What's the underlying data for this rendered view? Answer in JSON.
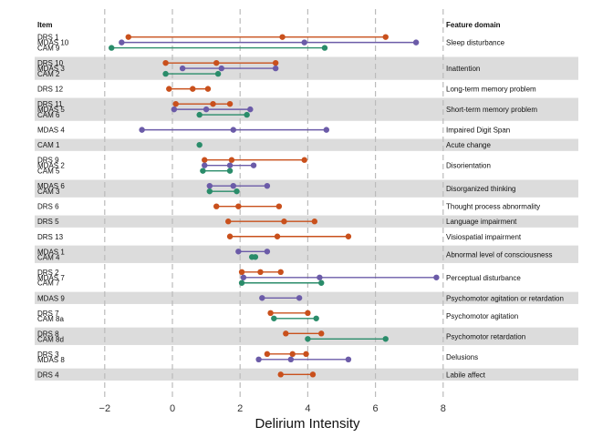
{
  "chart_data": {
    "type": "dumbbell",
    "xlabel": "Delirium Intensity",
    "xlim": [
      -2.7,
      8
    ],
    "xticks": [
      -2,
      0,
      2,
      4,
      6,
      8
    ],
    "grid": "vertical dashed",
    "headers": {
      "item": "Item",
      "domain": "Feature domain"
    },
    "colors": {
      "DRS": "#c9501c",
      "MDAS": "#6b5ba8",
      "CAM": "#2a8c6a",
      "band": "#dcdcdc",
      "grid": "#bbbbbb"
    },
    "domains": [
      {
        "name": "Sleep disturbance",
        "shaded": false,
        "items": [
          {
            "label": "DRS 1",
            "group": "DRS",
            "points": [
              -1.3,
              3.25,
              6.3
            ]
          },
          {
            "label": "MDAS 10",
            "group": "MDAS",
            "points": [
              -1.5,
              3.9,
              7.2
            ]
          },
          {
            "label": "CAM 9",
            "group": "CAM",
            "points": [
              -1.8,
              4.5
            ]
          }
        ]
      },
      {
        "name": "Inattention",
        "shaded": true,
        "items": [
          {
            "label": "DRS 10",
            "group": "DRS",
            "points": [
              -0.2,
              1.3,
              3.05
            ]
          },
          {
            "label": "MDAS 3",
            "group": "MDAS",
            "points": [
              0.3,
              1.45,
              3.05
            ]
          },
          {
            "label": "CAM 2",
            "group": "CAM",
            "points": [
              -0.2,
              1.35
            ]
          }
        ]
      },
      {
        "name": "Long-term memory problem",
        "shaded": false,
        "items": [
          {
            "label": "DRS 12",
            "group": "DRS",
            "points": [
              -0.1,
              0.6,
              1.05
            ]
          }
        ]
      },
      {
        "name": "Short-term memory problem",
        "shaded": true,
        "items": [
          {
            "label": "DRS 11",
            "group": "DRS",
            "points": [
              0.1,
              1.2,
              1.7
            ]
          },
          {
            "label": "MDAS 5",
            "group": "MDAS",
            "points": [
              0.05,
              1.0,
              2.3
            ]
          },
          {
            "label": "CAM 6",
            "group": "CAM",
            "points": [
              0.8,
              2.2
            ]
          }
        ]
      },
      {
        "name": "Impaired Digit Span",
        "shaded": false,
        "items": [
          {
            "label": "MDAS 4",
            "group": "MDAS",
            "points": [
              -0.9,
              1.8,
              4.55
            ]
          }
        ]
      },
      {
        "name": "Acute change",
        "shaded": true,
        "items": [
          {
            "label": "CAM 1",
            "group": "CAM",
            "points": [
              0.8
            ]
          }
        ]
      },
      {
        "name": "Disorientation",
        "shaded": false,
        "items": [
          {
            "label": "DRS 9",
            "group": "DRS",
            "points": [
              0.95,
              1.75,
              3.9
            ]
          },
          {
            "label": "MDAS 2",
            "group": "MDAS",
            "points": [
              0.95,
              1.7,
              2.4
            ]
          },
          {
            "label": "CAM 5",
            "group": "CAM",
            "points": [
              0.9,
              1.7
            ]
          }
        ]
      },
      {
        "name": "Disorganized thinking",
        "shaded": true,
        "items": [
          {
            "label": "MDAS 6",
            "group": "MDAS",
            "points": [
              1.1,
              1.8,
              2.8
            ]
          },
          {
            "label": "CAM 3",
            "group": "CAM",
            "points": [
              1.1,
              1.9
            ]
          }
        ]
      },
      {
        "name": "Thought process abnormality",
        "shaded": false,
        "items": [
          {
            "label": "DRS 6",
            "group": "DRS",
            "points": [
              1.3,
              1.95,
              3.15
            ]
          }
        ]
      },
      {
        "name": "Language impairment",
        "shaded": true,
        "items": [
          {
            "label": "DRS 5",
            "group": "DRS",
            "points": [
              1.65,
              3.3,
              4.2
            ]
          }
        ]
      },
      {
        "name": "Visiospatial impairment",
        "shaded": false,
        "items": [
          {
            "label": "DRS 13",
            "group": "DRS",
            "points": [
              1.7,
              3.1,
              5.2
            ]
          }
        ]
      },
      {
        "name": "Abnormal level of consciousness",
        "shaded": true,
        "items": [
          {
            "label": "MDAS 1",
            "group": "MDAS",
            "points": [
              1.95,
              2.8
            ]
          },
          {
            "label": "CAM 4",
            "group": "CAM",
            "points": [
              2.35,
              2.45
            ]
          }
        ]
      },
      {
        "name": "Perceptual disturbance",
        "shaded": false,
        "items": [
          {
            "label": "DRS 2",
            "group": "DRS",
            "points": [
              2.05,
              2.6,
              3.2
            ]
          },
          {
            "label": "MDAS 7",
            "group": "MDAS",
            "points": [
              2.1,
              4.35,
              7.8
            ]
          },
          {
            "label": "CAM 7",
            "group": "CAM",
            "points": [
              2.05,
              4.4
            ]
          }
        ]
      },
      {
        "name": "Psychomotor agitation or retardation",
        "shaded": true,
        "items": [
          {
            "label": "MDAS 9",
            "group": "MDAS",
            "points": [
              2.65,
              3.75
            ]
          }
        ]
      },
      {
        "name": "Psychomotor agitation",
        "shaded": false,
        "items": [
          {
            "label": "DRS 7",
            "group": "DRS",
            "points": [
              2.9,
              4.0
            ]
          },
          {
            "label": "CAM 8a",
            "group": "CAM",
            "points": [
              3.0,
              4.25
            ]
          }
        ]
      },
      {
        "name": "Psychomotor retardation",
        "shaded": true,
        "items": [
          {
            "label": "DRS 8",
            "group": "DRS",
            "points": [
              3.35,
              4.4
            ]
          },
          {
            "label": "CAM 8d",
            "group": "CAM",
            "points": [
              4.0,
              6.3
            ]
          }
        ]
      },
      {
        "name": "Delusions",
        "shaded": false,
        "items": [
          {
            "label": "DRS 3",
            "group": "DRS",
            "points": [
              2.8,
              3.55,
              3.95
            ]
          },
          {
            "label": "MDAS 8",
            "group": "MDAS",
            "points": [
              2.55,
              3.5,
              5.2
            ]
          }
        ]
      },
      {
        "name": "Labile affect",
        "shaded": true,
        "items": [
          {
            "label": "DRS 4",
            "group": "DRS",
            "points": [
              3.2,
              4.15
            ]
          }
        ]
      }
    ]
  }
}
